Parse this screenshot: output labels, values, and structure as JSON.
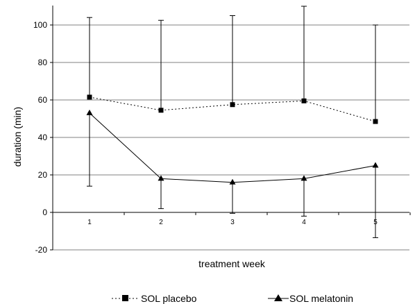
{
  "chart_data": {
    "type": "line",
    "title": "",
    "xlabel": "treatment week",
    "ylabel": "duration (min)",
    "categories": [
      "1",
      "2",
      "3",
      "4",
      "5"
    ],
    "ylim": [
      -20,
      110
    ],
    "yticks": [
      "-20",
      "0",
      "20",
      "40",
      "60",
      "80",
      "100"
    ],
    "grid": true,
    "legend_position": "bottom",
    "series": [
      {
        "name": "SOL placebo",
        "style": "dotted",
        "marker": "square",
        "color": "#000000",
        "values": [
          61.5,
          54.5,
          57.5,
          59.5,
          48.5
        ],
        "error_low": [
          null,
          null,
          null,
          null,
          null
        ],
        "error_high": [
          104,
          102.5,
          105,
          110,
          100
        ]
      },
      {
        "name": "SOL melatonin",
        "style": "solid",
        "marker": "triangle",
        "color": "#000000",
        "values": [
          53,
          18,
          16,
          18,
          25
        ],
        "error_low": [
          14,
          2,
          -0.5,
          -2,
          -13.5
        ],
        "error_high": [
          null,
          null,
          null,
          null,
          null
        ]
      }
    ]
  }
}
